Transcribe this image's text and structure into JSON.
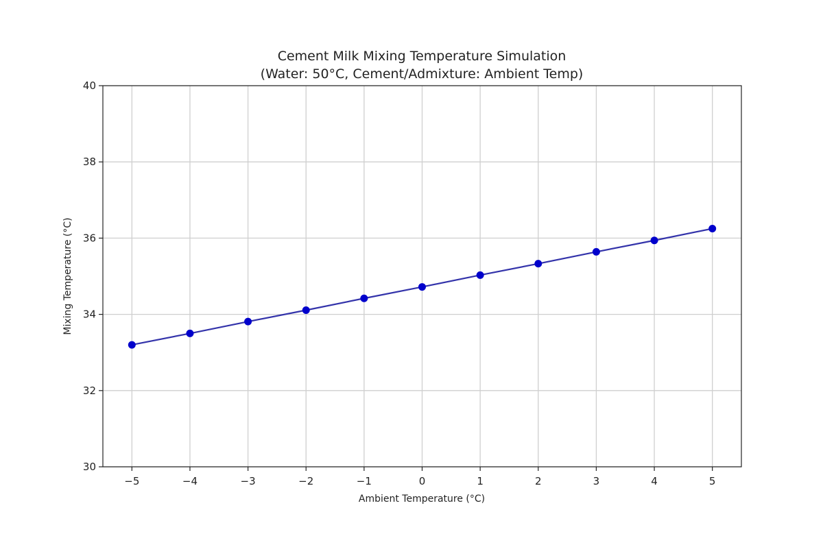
{
  "chart_data": {
    "type": "line",
    "title_lines": [
      "Cement Milk Mixing Temperature Simulation",
      "(Water: 50°C, Cement/Admixture: Ambient Temp)"
    ],
    "xlabel": "Ambient Temperature (°C)",
    "ylabel": "Mixing Temperature (°C)",
    "xlim": [
      -5.5,
      5.5
    ],
    "ylim": [
      30,
      40
    ],
    "xticks": [
      -5,
      -4,
      -3,
      -2,
      -1,
      0,
      1,
      2,
      3,
      4,
      5
    ],
    "xtick_labels": [
      "−5",
      "−4",
      "−3",
      "−2",
      "−1",
      "0",
      "1",
      "2",
      "3",
      "4",
      "5"
    ],
    "yticks": [
      30,
      32,
      34,
      36,
      38,
      40
    ],
    "ytick_labels": [
      "30",
      "32",
      "34",
      "36",
      "38",
      "40"
    ],
    "grid": true,
    "series": [
      {
        "name": "Mixing Temperature",
        "color": "#0000cc",
        "line_color": "#3333aa",
        "marker": "circle",
        "x": [
          -5,
          -4,
          -3,
          -2,
          -1,
          0,
          1,
          2,
          3,
          4,
          5
        ],
        "y": [
          33.2,
          33.5,
          33.81,
          34.11,
          34.42,
          34.72,
          35.03,
          35.33,
          35.64,
          35.94,
          36.25
        ]
      }
    ]
  }
}
